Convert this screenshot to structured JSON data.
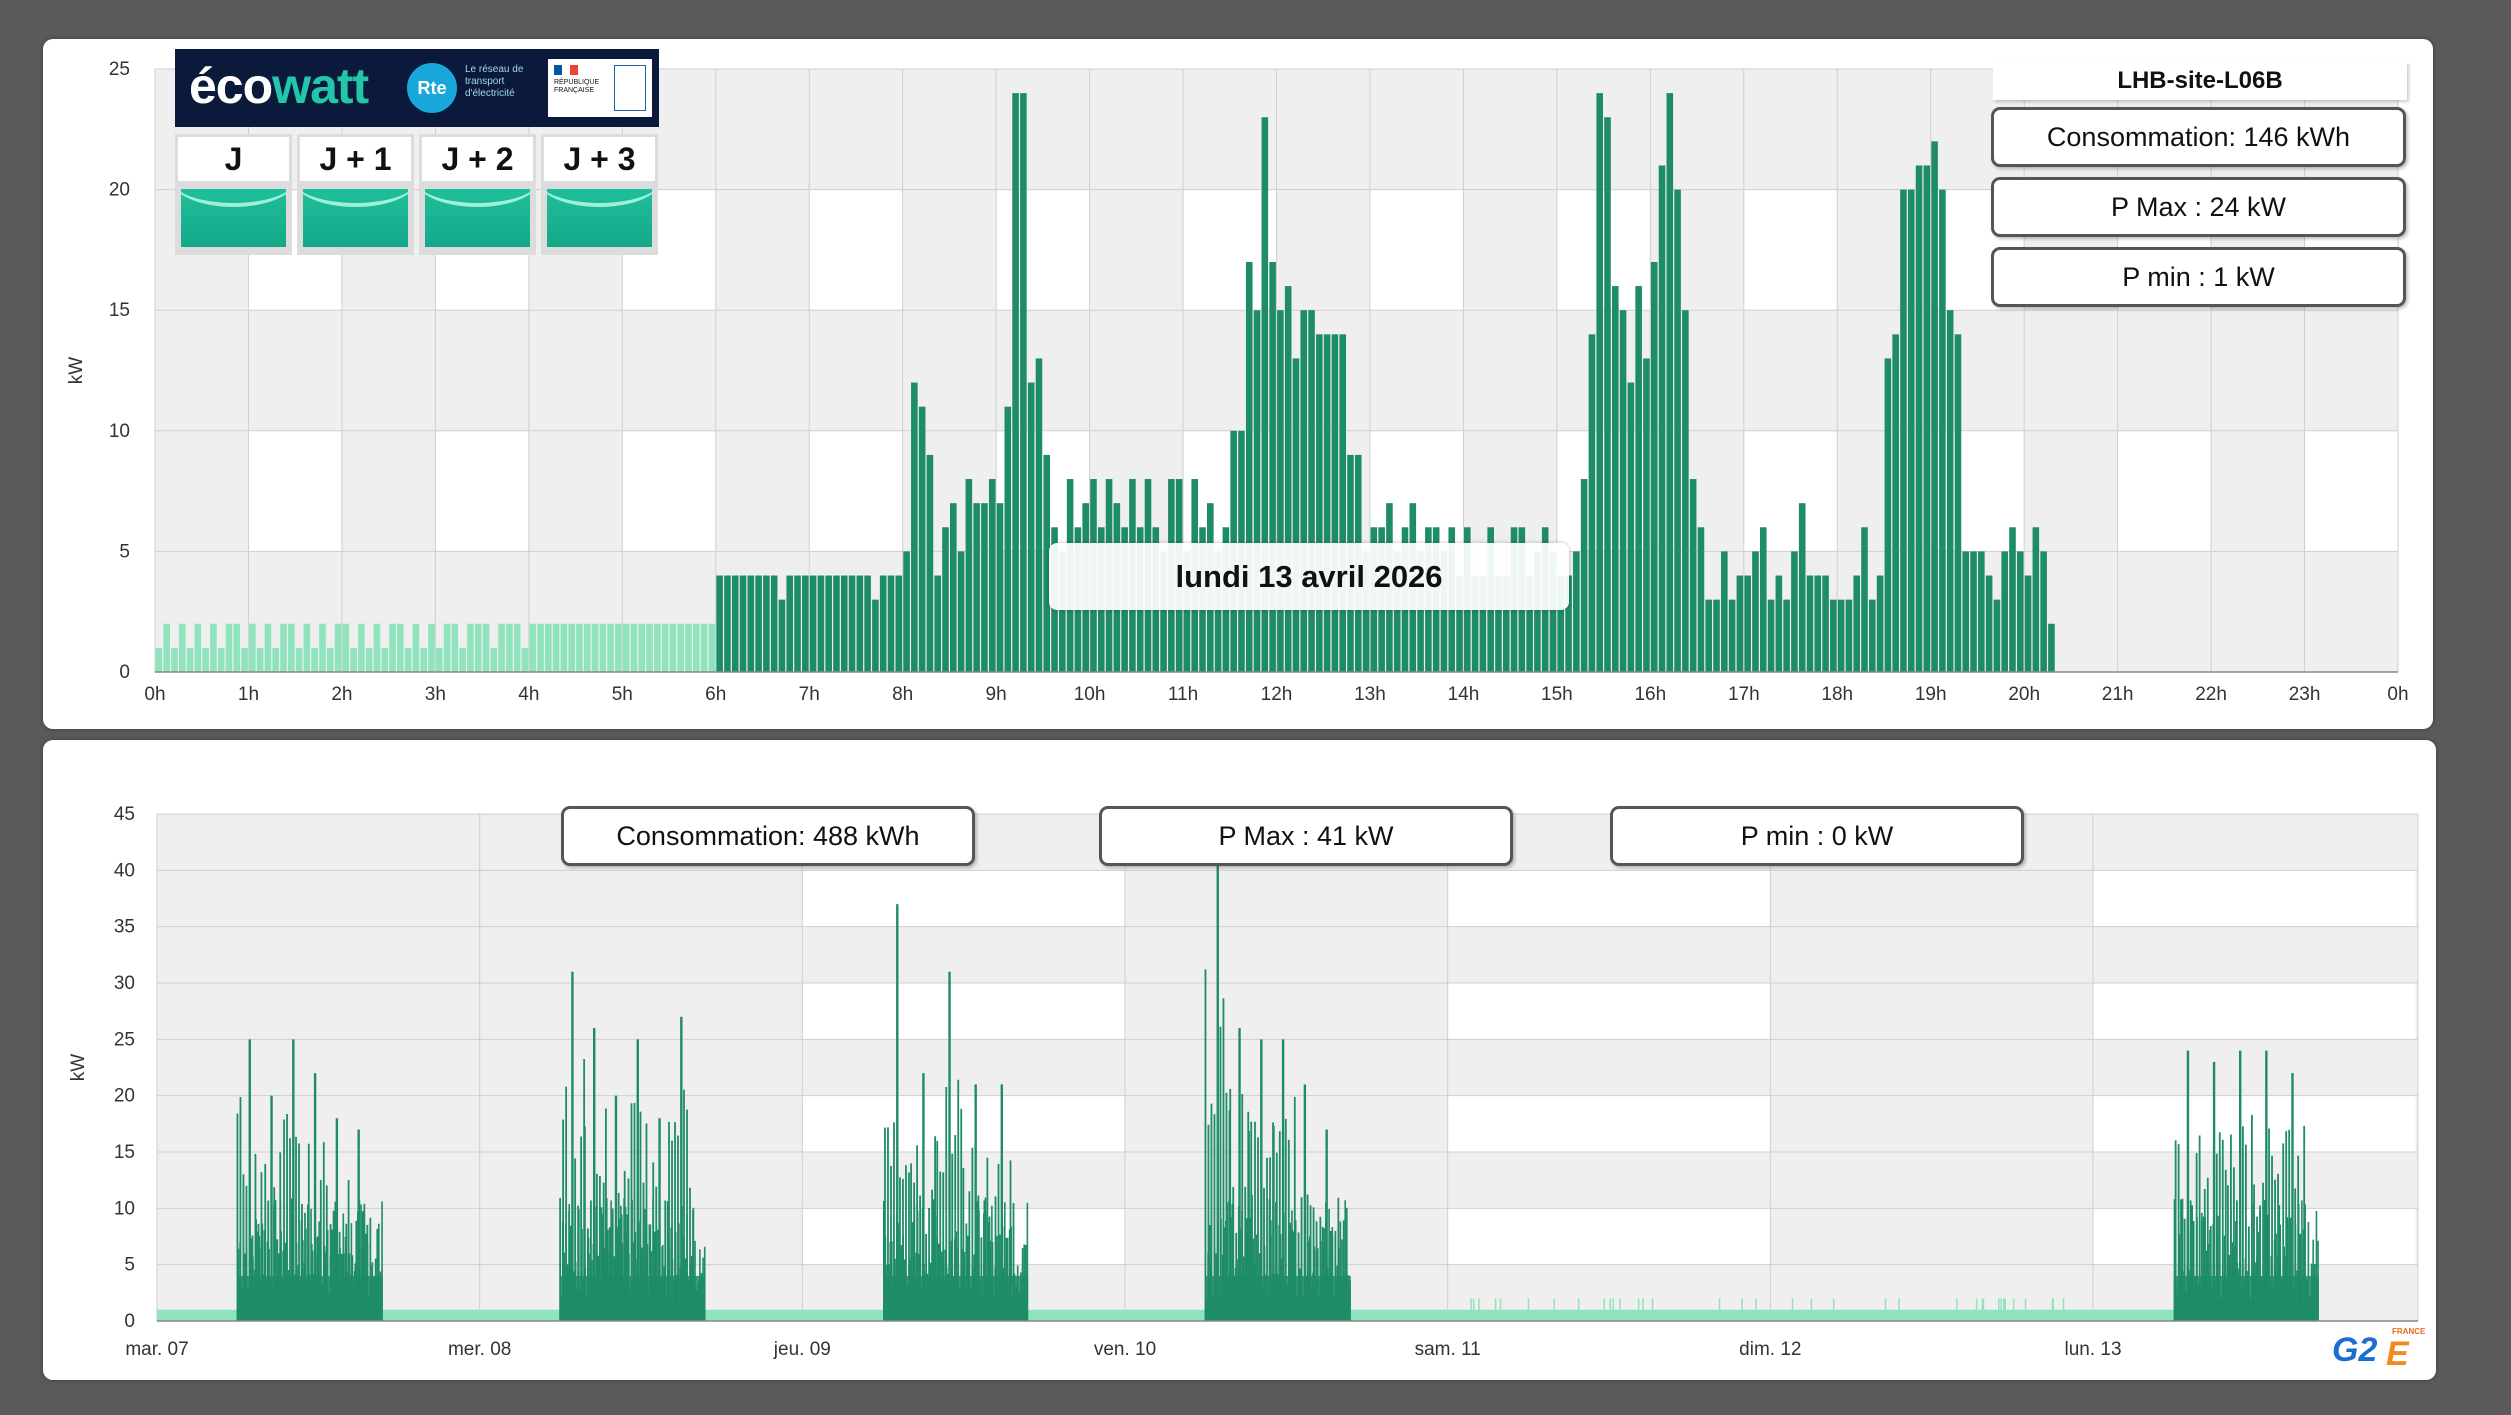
{
  "top_panel": {
    "site_name": "LHB-site-L06B",
    "consumption": "Consommation: 146 kWh",
    "p_max": "P Max :  24 kW",
    "p_min": "P min : 1 kW",
    "date_tooltip": "lundi 13 avril 2026"
  },
  "bottom_panel": {
    "consumption": "Consommation: 488 kWh",
    "p_max": "P Max :  41 kW",
    "p_min": "P min : 0 kW"
  },
  "ecowatt": {
    "logo_text_1": "éco",
    "logo_text_2": "watt",
    "rte_label": "Rte",
    "rte_text": "Le réseau de transport d'électricité",
    "gov_text": "RÉPUBLIQUE FRANÇAISE",
    "days": [
      "J",
      "J + 1",
      "J + 2",
      "J + 3"
    ],
    "signal_color": "#1fbf9c"
  },
  "brand": {
    "logo": "G2",
    "logo_e": "E",
    "country": "FRANCE"
  },
  "colors": {
    "bar_dark": "#1e8c68",
    "bar_light": "#8fe3bd",
    "band_gray": "#efefef",
    "grid": "#cfcfcf"
  },
  "chart_data": [
    {
      "type": "bar",
      "ylabel": "kW",
      "ylim": [
        0,
        25
      ],
      "yticks": [
        0,
        5,
        10,
        15,
        20,
        25
      ],
      "xticks": [
        "0h",
        "1h",
        "2h",
        "3h",
        "4h",
        "5h",
        "6h",
        "7h",
        "8h",
        "9h",
        "10h",
        "11h",
        "12h",
        "13h",
        "14h",
        "15h",
        "16h",
        "17h",
        "18h",
        "19h",
        "20h",
        "21h",
        "22h",
        "23h",
        "0h"
      ],
      "interval_minutes": 5,
      "highlight_start_hour": 6,
      "values": [
        1,
        2,
        1,
        2,
        1,
        2,
        1,
        2,
        1,
        2,
        2,
        1,
        2,
        1,
        2,
        1,
        2,
        2,
        1,
        2,
        1,
        2,
        1,
        2,
        2,
        1,
        2,
        1,
        2,
        1,
        2,
        2,
        1,
        2,
        1,
        2,
        1,
        2,
        2,
        1,
        2,
        2,
        2,
        1,
        2,
        2,
        2,
        1,
        2,
        2,
        2,
        2,
        2,
        2,
        2,
        2,
        2,
        2,
        2,
        2,
        2,
        2,
        2,
        2,
        2,
        2,
        2,
        2,
        2,
        2,
        2,
        2,
        2,
        2,
        2,
        2,
        2,
        1,
        2,
        2,
        2,
        2,
        2,
        1,
        2,
        2,
        2,
        2,
        2,
        2,
        2,
        2,
        2,
        2,
        2,
        2,
        2,
        2,
        2,
        2,
        2,
        2,
        1,
        2,
        2,
        2,
        2,
        2,
        2,
        2,
        2,
        2,
        2,
        2,
        2,
        2,
        2,
        2,
        2,
        2,
        2,
        2,
        2,
        2,
        2,
        2,
        2,
        2,
        2,
        2,
        2,
        2,
        2,
        1,
        2,
        2,
        2,
        2,
        2,
        2,
        2,
        2,
        2,
        2,
        1,
        2,
        2,
        2,
        2,
        2,
        2,
        2,
        2,
        2,
        2,
        2,
        2,
        2,
        2,
        2,
        2,
        2,
        2,
        2,
        2,
        2,
        2,
        2,
        2,
        2,
        2,
        2,
        2,
        2,
        2,
        2,
        2,
        2,
        2,
        2,
        2,
        2,
        2,
        2,
        2,
        2,
        2,
        2,
        2,
        2,
        2,
        2,
        2,
        2,
        2,
        2,
        2,
        2,
        2,
        2,
        2,
        2,
        2,
        2,
        2,
        2,
        2,
        2,
        2,
        2,
        2,
        2,
        2,
        2,
        2,
        2,
        2,
        2,
        2,
        2,
        2,
        2,
        2,
        2,
        2,
        2,
        2,
        2,
        2,
        2,
        2,
        2,
        2,
        2,
        2,
        2,
        2,
        2,
        2,
        2,
        2,
        2,
        2,
        2,
        2,
        2,
        2,
        2,
        2,
        2,
        2,
        2,
        2,
        2,
        2,
        2,
        2,
        2,
        2,
        2,
        2,
        2,
        2,
        2,
        2,
        2,
        2,
        2,
        2,
        2,
        2,
        2,
        2,
        2,
        2,
        2,
        2,
        2,
        2,
        2,
        2,
        2,
        2,
        2,
        2,
        2,
        2,
        2,
        2,
        2,
        2,
        2,
        2,
        2,
        2
      ],
      "values_note": "",
      "day_values": [
        4,
        4,
        4,
        4,
        4,
        4,
        4,
        4,
        3,
        4,
        4,
        4,
        4,
        4,
        4,
        4,
        4,
        4,
        4,
        4,
        3,
        4,
        4,
        4,
        5,
        12,
        11,
        9,
        4,
        6,
        7,
        5,
        8,
        7,
        7,
        8,
        7,
        11,
        24,
        24,
        12,
        13,
        9,
        6,
        5,
        8,
        6,
        7,
        8,
        6,
        8,
        7,
        6,
        8,
        6,
        8,
        6,
        5,
        8,
        8,
        5,
        8,
        6,
        7,
        5,
        6,
        10,
        10,
        17,
        15,
        23,
        17,
        15,
        16,
        13,
        15,
        15,
        14,
        14,
        14,
        14,
        9,
        9,
        5,
        6,
        6,
        7,
        5,
        6,
        7,
        5,
        6,
        6,
        5,
        6,
        4,
        6,
        4,
        4,
        6,
        4,
        4,
        6,
        6,
        4,
        5,
        6,
        5,
        4,
        4,
        5,
        8,
        14,
        24,
        23,
        16,
        15,
        12,
        16,
        13,
        17,
        21,
        24,
        20,
        15,
        8,
        6,
        3,
        3,
        5,
        3,
        4,
        4,
        5,
        6,
        3,
        4,
        3,
        5,
        7,
        4,
        4,
        4,
        3,
        3,
        3,
        4,
        6,
        3,
        4,
        13,
        14,
        20,
        20,
        21,
        21,
        22,
        20,
        15,
        14,
        5,
        5,
        5,
        4,
        3,
        5,
        6,
        5,
        4,
        6,
        5,
        2
      ]
    },
    {
      "type": "bar",
      "ylabel": "kW",
      "ylim": [
        0,
        45
      ],
      "yticks": [
        0,
        5,
        10,
        15,
        20,
        25,
        30,
        35,
        40,
        45
      ],
      "xticks": [
        "mar. 07",
        "mer. 08",
        "jeu. 09",
        "ven. 10",
        "sam. 11",
        "dim. 12",
        "lun. 13"
      ],
      "days": [
        {
          "label": "mar. 07",
          "work": true,
          "peaks": [
            25,
            20,
            25,
            22,
            18,
            17
          ]
        },
        {
          "label": "mer. 08",
          "work": true,
          "peaks": [
            31,
            26,
            20,
            25,
            18,
            27
          ]
        },
        {
          "label": "jeu. 09",
          "work": true,
          "peaks": [
            37,
            22,
            31,
            21,
            21
          ]
        },
        {
          "label": "ven. 10",
          "work": true,
          "peaks": [
            41,
            26,
            25,
            25,
            21,
            17
          ]
        },
        {
          "label": "sam. 11",
          "work": false,
          "peaks": []
        },
        {
          "label": "dim. 12",
          "work": false,
          "peaks": []
        },
        {
          "label": "lun. 13",
          "work": true,
          "peaks": [
            24,
            23,
            24,
            24,
            22
          ]
        }
      ]
    }
  ]
}
